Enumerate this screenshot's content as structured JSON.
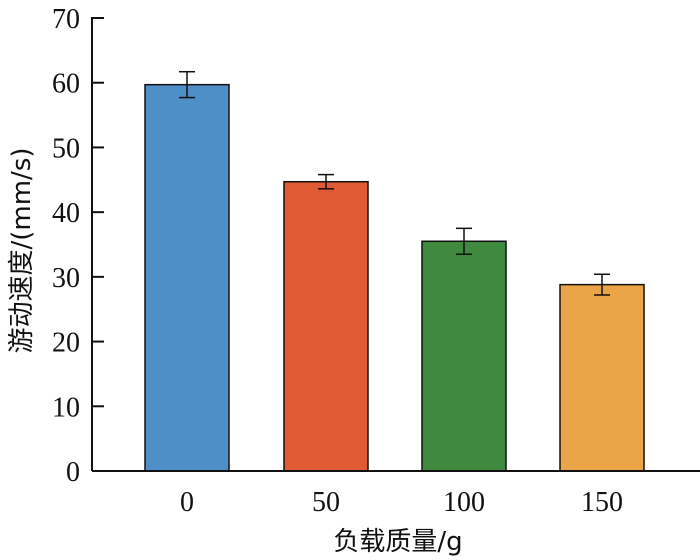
{
  "chart_data": {
    "type": "bar",
    "categories": [
      "0",
      "50",
      "100",
      "150"
    ],
    "values": [
      59.7,
      44.7,
      35.5,
      28.8
    ],
    "errors": [
      2.0,
      1.1,
      2.0,
      1.6
    ],
    "colors": [
      "#4f8fc8",
      "#e05a33",
      "#3f8a3f",
      "#eba548"
    ],
    "xlabel": "负载质量/g",
    "ylabel": "游动速度/(mm/s)",
    "ylim": [
      0,
      70
    ],
    "yticks": [
      0,
      10,
      20,
      30,
      40,
      50,
      60,
      70
    ],
    "grid": false,
    "legend": false
  }
}
